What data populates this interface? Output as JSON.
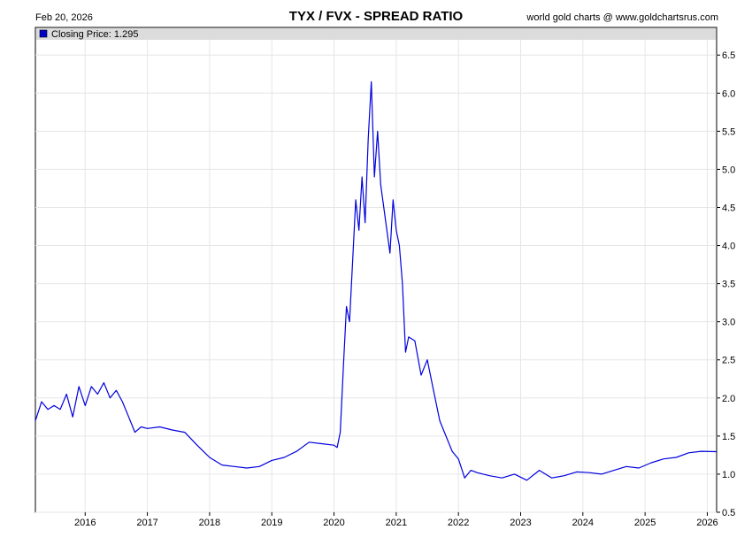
{
  "header": {
    "date": "Feb 20, 2026",
    "title": "TYX / FVX - SPREAD RATIO",
    "credit": "world gold charts @ www.goldchartsrus.com"
  },
  "legend": {
    "label": "Closing Price: 1.295",
    "swatch_color": "#0000cc"
  },
  "chart_data": {
    "type": "line",
    "title": "TYX / FVX - SPREAD RATIO",
    "xlabel": "",
    "ylabel": "",
    "xlim": [
      2015.2,
      2026.15
    ],
    "ylim": [
      0.5,
      6.7
    ],
    "x_ticks": [
      "2016",
      "2017",
      "2018",
      "2019",
      "2020",
      "2021",
      "2022",
      "2023",
      "2024",
      "2025",
      "2026"
    ],
    "y_ticks": [
      "0.5",
      "1.0",
      "1.5",
      "2.0",
      "2.5",
      "3.0",
      "3.5",
      "4.0",
      "4.5",
      "5.0",
      "5.5",
      "6.0",
      "6.5"
    ],
    "grid": true,
    "line_color": "#0000dd",
    "series": [
      {
        "name": "Closing Price",
        "x": [
          2015.2,
          2015.3,
          2015.4,
          2015.5,
          2015.6,
          2015.7,
          2015.8,
          2015.9,
          2016.0,
          2016.1,
          2016.2,
          2016.3,
          2016.4,
          2016.5,
          2016.6,
          2016.7,
          2016.8,
          2016.9,
          2017.0,
          2017.2,
          2017.4,
          2017.6,
          2017.8,
          2018.0,
          2018.2,
          2018.4,
          2018.6,
          2018.8,
          2019.0,
          2019.2,
          2019.4,
          2019.6,
          2019.8,
          2020.0,
          2020.05,
          2020.1,
          2020.15,
          2020.2,
          2020.25,
          2020.3,
          2020.35,
          2020.4,
          2020.45,
          2020.5,
          2020.55,
          2020.6,
          2020.65,
          2020.7,
          2020.75,
          2020.8,
          2020.85,
          2020.9,
          2020.95,
          2021.0,
          2021.05,
          2021.1,
          2021.15,
          2021.2,
          2021.3,
          2021.4,
          2021.5,
          2021.6,
          2021.7,
          2021.8,
          2021.9,
          2022.0,
          2022.1,
          2022.2,
          2022.3,
          2022.5,
          2022.7,
          2022.9,
          2023.1,
          2023.3,
          2023.5,
          2023.7,
          2023.9,
          2024.1,
          2024.3,
          2024.5,
          2024.7,
          2024.9,
          2025.1,
          2025.3,
          2025.5,
          2025.7,
          2025.9,
          2026.15
        ],
        "values": [
          1.7,
          1.95,
          1.85,
          1.9,
          1.85,
          2.05,
          1.75,
          2.15,
          1.9,
          2.15,
          2.05,
          2.2,
          2.0,
          2.1,
          1.95,
          1.75,
          1.55,
          1.62,
          1.6,
          1.62,
          1.58,
          1.55,
          1.38,
          1.22,
          1.12,
          1.1,
          1.08,
          1.1,
          1.18,
          1.22,
          1.3,
          1.42,
          1.4,
          1.38,
          1.35,
          1.55,
          2.4,
          3.2,
          3.0,
          3.8,
          4.6,
          4.2,
          4.9,
          4.3,
          5.4,
          6.15,
          4.9,
          5.5,
          4.8,
          4.5,
          4.2,
          3.9,
          4.6,
          4.2,
          4.0,
          3.5,
          2.6,
          2.8,
          2.75,
          2.3,
          2.5,
          2.1,
          1.7,
          1.5,
          1.3,
          1.2,
          0.95,
          1.05,
          1.02,
          0.98,
          0.95,
          1.0,
          0.92,
          1.05,
          0.95,
          0.98,
          1.03,
          1.02,
          1.0,
          1.05,
          1.1,
          1.08,
          1.15,
          1.2,
          1.22,
          1.28,
          1.3,
          1.295
        ]
      }
    ]
  }
}
